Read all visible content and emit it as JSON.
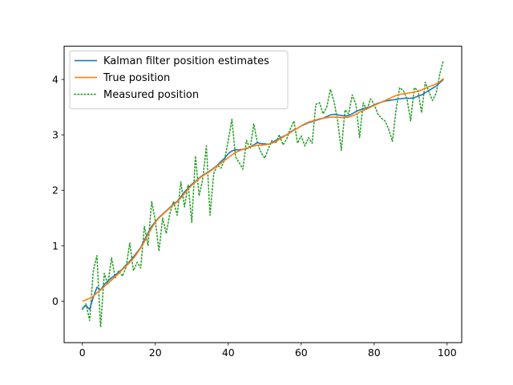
{
  "chart_data": {
    "type": "line",
    "title": "",
    "xlabel": "",
    "ylabel": "",
    "xlim": [
      -5,
      104
    ],
    "ylim": [
      -0.75,
      4.6
    ],
    "x_ticks": [
      0,
      20,
      40,
      60,
      80,
      100
    ],
    "y_ticks": [
      0,
      1,
      2,
      3,
      4
    ],
    "grid": false,
    "legend_position": "upper-left",
    "series": [
      {
        "name": "Kalman filter position estimates",
        "color": "#1f77b4",
        "style": "solid",
        "x": [
          0,
          1,
          2,
          3,
          4,
          5,
          6,
          7,
          8,
          9,
          10,
          11,
          12,
          13,
          14,
          15,
          16,
          17,
          18,
          19,
          20,
          21,
          22,
          23,
          24,
          25,
          26,
          27,
          28,
          29,
          30,
          31,
          32,
          33,
          34,
          35,
          36,
          37,
          38,
          39,
          40,
          41,
          42,
          43,
          44,
          45,
          46,
          47,
          48,
          49,
          50,
          51,
          52,
          53,
          54,
          55,
          56,
          57,
          58,
          59,
          60,
          61,
          62,
          63,
          64,
          65,
          66,
          67,
          68,
          69,
          70,
          71,
          72,
          73,
          74,
          75,
          76,
          77,
          78,
          79,
          80,
          81,
          82,
          83,
          84,
          85,
          86,
          87,
          88,
          89,
          90,
          91,
          92,
          93,
          94,
          95,
          96,
          97,
          98,
          99
        ],
        "values": [
          -0.13,
          -0.08,
          -0.15,
          0.07,
          0.25,
          0.2,
          0.3,
          0.36,
          0.42,
          0.47,
          0.52,
          0.58,
          0.65,
          0.72,
          0.8,
          0.88,
          0.97,
          1.1,
          1.23,
          1.35,
          1.43,
          1.51,
          1.57,
          1.63,
          1.69,
          1.75,
          1.8,
          1.88,
          1.97,
          2.04,
          2.11,
          2.16,
          2.22,
          2.27,
          2.31,
          2.35,
          2.4,
          2.45,
          2.52,
          2.58,
          2.66,
          2.71,
          2.73,
          2.73,
          2.74,
          2.75,
          2.78,
          2.82,
          2.86,
          2.84,
          2.84,
          2.83,
          2.86,
          2.9,
          2.93,
          2.97,
          3.0,
          3.05,
          3.09,
          3.12,
          3.16,
          3.19,
          3.22,
          3.24,
          3.26,
          3.28,
          3.3,
          3.33,
          3.36,
          3.37,
          3.36,
          3.35,
          3.34,
          3.35,
          3.38,
          3.42,
          3.45,
          3.47,
          3.49,
          3.51,
          3.54,
          3.57,
          3.59,
          3.61,
          3.62,
          3.63,
          3.64,
          3.65,
          3.66,
          3.66,
          3.66,
          3.67,
          3.7,
          3.72,
          3.76,
          3.8,
          3.84,
          3.88,
          3.94,
          4.0
        ]
      },
      {
        "name": "True position",
        "color": "#ff7f0e",
        "style": "solid",
        "x": [
          0,
          1,
          2,
          3,
          4,
          5,
          6,
          7,
          8,
          9,
          10,
          11,
          12,
          13,
          14,
          15,
          16,
          17,
          18,
          19,
          20,
          21,
          22,
          23,
          24,
          25,
          26,
          27,
          28,
          29,
          30,
          31,
          32,
          33,
          34,
          35,
          36,
          37,
          38,
          39,
          40,
          41,
          42,
          43,
          44,
          45,
          46,
          47,
          48,
          49,
          50,
          51,
          52,
          53,
          54,
          55,
          56,
          57,
          58,
          59,
          60,
          61,
          62,
          63,
          64,
          65,
          66,
          67,
          68,
          69,
          70,
          71,
          72,
          73,
          74,
          75,
          76,
          77,
          78,
          79,
          80,
          81,
          82,
          83,
          84,
          85,
          86,
          87,
          88,
          89,
          90,
          91,
          92,
          93,
          94,
          95,
          96,
          97,
          98,
          99
        ],
        "values": [
          0.0,
          0.02,
          0.05,
          0.09,
          0.15,
          0.2,
          0.26,
          0.32,
          0.38,
          0.44,
          0.5,
          0.57,
          0.63,
          0.7,
          0.77,
          0.86,
          0.96,
          1.07,
          1.2,
          1.32,
          1.42,
          1.5,
          1.56,
          1.62,
          1.68,
          1.74,
          1.79,
          1.86,
          1.94,
          2.02,
          2.09,
          2.15,
          2.21,
          2.26,
          2.3,
          2.34,
          2.39,
          2.44,
          2.49,
          2.54,
          2.59,
          2.64,
          2.68,
          2.71,
          2.74,
          2.76,
          2.78,
          2.8,
          2.81,
          2.81,
          2.82,
          2.83,
          2.85,
          2.88,
          2.92,
          2.96,
          3.0,
          3.04,
          3.08,
          3.12,
          3.16,
          3.2,
          3.23,
          3.25,
          3.27,
          3.29,
          3.3,
          3.31,
          3.32,
          3.32,
          3.32,
          3.31,
          3.31,
          3.32,
          3.34,
          3.37,
          3.41,
          3.44,
          3.47,
          3.5,
          3.53,
          3.56,
          3.59,
          3.62,
          3.65,
          3.68,
          3.71,
          3.73,
          3.74,
          3.75,
          3.76,
          3.77,
          3.79,
          3.81,
          3.84,
          3.87,
          3.89,
          3.92,
          3.96,
          4.02
        ]
      },
      {
        "name": "Measured position",
        "color": "#2ca02c",
        "style": "dotted",
        "x": [
          0,
          1,
          2,
          3,
          4,
          5,
          6,
          7,
          8,
          9,
          10,
          11,
          12,
          13,
          14,
          15,
          16,
          17,
          18,
          19,
          20,
          21,
          22,
          23,
          24,
          25,
          26,
          27,
          28,
          29,
          30,
          31,
          32,
          33,
          34,
          35,
          36,
          37,
          38,
          39,
          40,
          41,
          42,
          43,
          44,
          45,
          46,
          47,
          48,
          49,
          50,
          51,
          52,
          53,
          54,
          55,
          56,
          57,
          58,
          59,
          60,
          61,
          62,
          63,
          64,
          65,
          66,
          67,
          68,
          69,
          70,
          71,
          72,
          73,
          74,
          75,
          76,
          77,
          78,
          79,
          80,
          81,
          82,
          83,
          84,
          85,
          86,
          87,
          88,
          89,
          90,
          91,
          92,
          93,
          94,
          95,
          96,
          97,
          98,
          99
        ],
        "values": [
          -0.15,
          -0.05,
          -0.35,
          0.55,
          0.82,
          -0.47,
          0.5,
          0.3,
          0.78,
          0.42,
          0.55,
          0.45,
          0.62,
          1.05,
          0.55,
          0.7,
          0.6,
          1.35,
          1.0,
          1.8,
          1.45,
          0.9,
          1.5,
          1.22,
          1.58,
          1.8,
          1.55,
          2.15,
          1.7,
          2.1,
          1.42,
          2.62,
          1.9,
          2.2,
          2.8,
          1.55,
          2.3,
          2.45,
          2.4,
          2.55,
          2.9,
          3.28,
          2.6,
          2.5,
          2.38,
          2.9,
          2.75,
          3.2,
          2.85,
          2.68,
          2.58,
          2.75,
          2.9,
          2.85,
          3.0,
          2.82,
          2.92,
          3.1,
          3.25,
          2.85,
          2.98,
          2.8,
          2.95,
          2.85,
          3.55,
          3.58,
          3.38,
          3.5,
          3.82,
          3.6,
          3.25,
          2.72,
          3.45,
          3.38,
          3.72,
          3.55,
          2.95,
          3.58,
          3.45,
          3.65,
          3.55,
          3.38,
          3.3,
          3.25,
          3.1,
          2.88,
          3.45,
          3.85,
          3.8,
          3.65,
          3.25,
          3.85,
          3.8,
          3.4,
          3.95,
          3.78,
          3.62,
          3.75,
          4.1,
          4.35
        ]
      }
    ]
  }
}
